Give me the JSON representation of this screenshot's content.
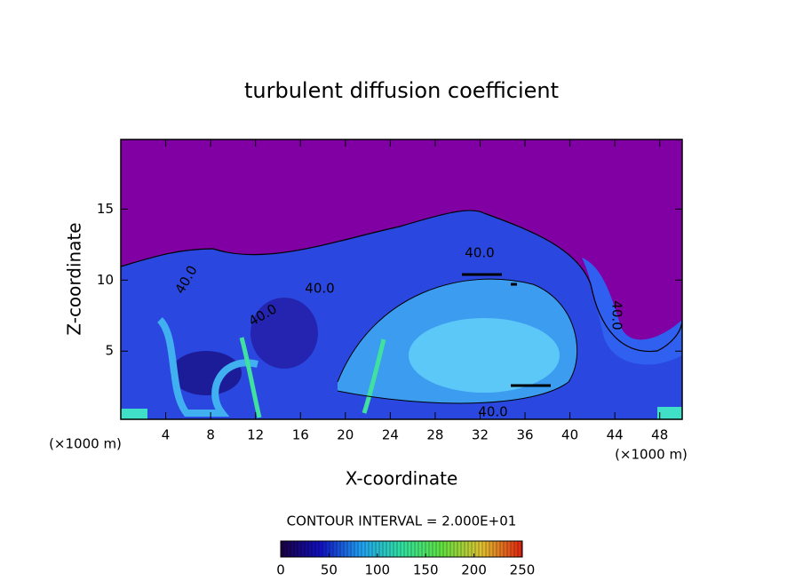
{
  "chart_data": {
    "type": "contour",
    "title": "turbulent diffusion coefficient",
    "x_label": "X-coordinate",
    "y_label": "Z-coordinate",
    "x_unit_labels": [
      "(×1000 m)",
      "(×1000 m)"
    ],
    "xlim": [
      0,
      50
    ],
    "xticks": [
      4,
      8,
      12,
      16,
      20,
      24,
      28,
      32,
      36,
      40,
      44,
      48
    ],
    "ylim": [
      0.2,
      19.9
    ],
    "yticks": [
      5,
      10,
      15
    ],
    "contour_labels": [
      "40.0",
      "40.0",
      "40.0",
      "40.0",
      "40.0",
      "40.0"
    ],
    "contour_interval_text": "CONTOUR INTERVAL = 2.000E+01",
    "colorbar": {
      "lim": [
        0,
        250
      ],
      "ticks": [
        0,
        50,
        100,
        150,
        200,
        250
      ],
      "colors": [
        "#1a0040",
        "#1010c0",
        "#20a0f0",
        "#30e0a0",
        "#60e040",
        "#e0c030",
        "#e02010"
      ]
    }
  }
}
